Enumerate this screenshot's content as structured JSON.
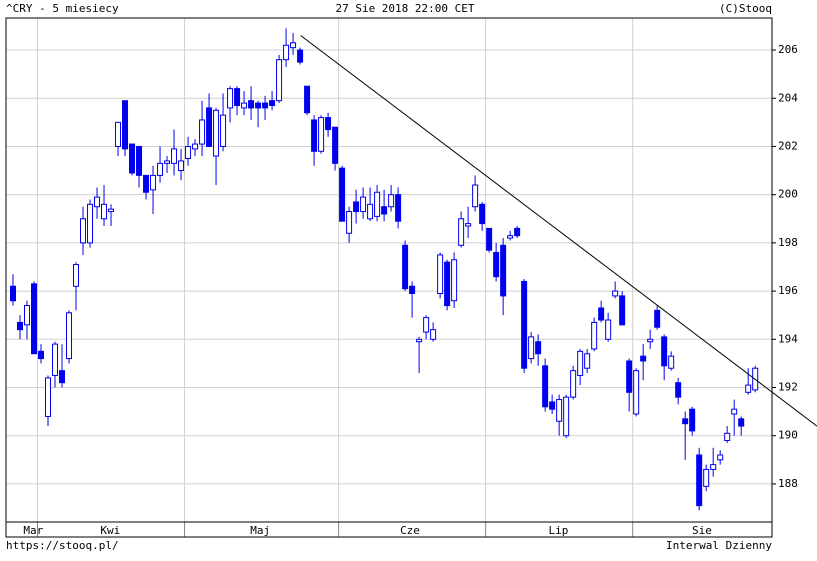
{
  "chart_data": {
    "type": "candlestick",
    "header_left": "^CRY - 5 miesiecy",
    "header_center": "27 Sie 2018 22:00 CET",
    "header_right": "(C)Stooq",
    "footer_left": "https://stooq.pl/",
    "footer_right": "Interwal Dzienny",
    "up_color": "#ffffff",
    "down_color": "#0000ee",
    "edge_color": "#0000ee",
    "open": [
      196.2,
      194.7,
      194.6,
      196.3,
      193.5,
      190.8,
      192.5,
      192.7,
      193.2,
      196.2,
      198.0,
      198.0,
      199.5,
      199.0,
      199.3,
      202.0,
      203.9,
      202.1,
      202.0,
      200.8,
      200.2,
      200.8,
      201.3,
      201.3,
      201.0,
      201.5,
      201.9,
      202.1,
      203.6,
      201.6,
      202.0,
      203.6,
      204.4,
      203.6,
      203.9,
      203.8,
      203.8,
      203.9,
      203.9,
      205.6,
      206.1,
      206.0,
      204.5,
      203.1,
      201.8,
      203.2,
      202.8,
      201.1,
      198.4,
      199.7,
      199.3,
      199.0,
      199.1,
      199.5,
      199.5,
      200.0,
      197.9,
      196.2,
      193.9,
      194.3,
      194.0,
      195.9,
      197.2,
      195.6,
      197.9,
      198.7,
      199.5,
      199.6,
      198.6,
      197.6,
      197.9,
      198.2,
      198.6,
      196.4,
      193.2,
      193.9,
      192.9,
      191.4,
      190.6,
      190.0,
      191.6,
      192.5,
      192.8,
      193.6,
      195.3,
      194.0,
      195.8,
      195.8,
      193.1,
      190.9,
      193.3,
      193.9,
      195.2,
      194.1,
      192.8,
      192.2,
      190.7,
      191.1,
      189.2,
      187.9,
      188.6,
      189.0,
      189.8,
      190.9,
      190.7,
      191.8,
      191.9
    ],
    "high": [
      196.7,
      195.0,
      195.6,
      196.4,
      193.8,
      192.5,
      193.9,
      193.8,
      195.2,
      197.2,
      199.5,
      199.8,
      200.3,
      200.4,
      199.6,
      203.0,
      203.9,
      202.1,
      202.0,
      200.8,
      201.2,
      202.0,
      201.6,
      202.7,
      201.9,
      202.4,
      202.3,
      203.9,
      204.2,
      203.6,
      204.2,
      204.5,
      204.5,
      204.3,
      204.5,
      203.9,
      204.1,
      204.3,
      205.8,
      206.9,
      206.7,
      206.1,
      204.5,
      203.3,
      203.3,
      203.4,
      202.8,
      201.2,
      199.5,
      200.2,
      200.3,
      200.3,
      200.4,
      200.2,
      200.4,
      200.3,
      198.1,
      196.4,
      194.1,
      195.0,
      194.7,
      197.6,
      197.3,
      197.6,
      199.3,
      199.5,
      200.8,
      199.7,
      198.6,
      198.0,
      198.2,
      198.5,
      198.7,
      196.5,
      194.3,
      194.2,
      193.2,
      191.7,
      191.7,
      191.7,
      192.9,
      193.6,
      193.6,
      194.9,
      195.6,
      195.1,
      196.4,
      196.0,
      193.2,
      192.8,
      193.8,
      194.4,
      195.4,
      194.2,
      193.5,
      192.4,
      191.0,
      191.2,
      189.5,
      188.8,
      189.5,
      189.4,
      190.4,
      191.5,
      190.8,
      192.8,
      192.9
    ],
    "low": [
      195.4,
      194.0,
      194.0,
      193.4,
      193.0,
      190.4,
      192.0,
      192.0,
      193.0,
      195.2,
      197.5,
      197.8,
      199.0,
      198.7,
      198.7,
      201.6,
      201.6,
      200.8,
      200.3,
      199.8,
      199.2,
      200.5,
      200.9,
      200.8,
      200.6,
      201.2,
      201.6,
      201.6,
      202.0,
      200.4,
      201.8,
      203.0,
      203.3,
      203.3,
      203.1,
      202.8,
      203.1,
      203.5,
      203.8,
      205.3,
      205.8,
      205.4,
      203.3,
      201.2,
      201.7,
      202.4,
      201.0,
      198.9,
      198.0,
      198.8,
      199.0,
      198.9,
      198.9,
      198.9,
      199.3,
      198.6,
      196.0,
      194.9,
      192.6,
      194.0,
      193.9,
      195.7,
      195.2,
      195.3,
      197.8,
      198.2,
      199.3,
      198.5,
      197.6,
      196.4,
      195.0,
      198.1,
      198.2,
      192.6,
      193.0,
      192.9,
      191.0,
      190.9,
      190.0,
      189.9,
      191.5,
      192.1,
      192.6,
      193.5,
      194.7,
      193.9,
      195.7,
      194.6,
      191.0,
      190.8,
      192.3,
      193.6,
      194.4,
      192.3,
      192.7,
      191.3,
      189.0,
      190.0,
      186.9,
      187.7,
      188.3,
      188.8,
      189.7,
      190.0,
      190.0,
      191.7,
      191.8
    ],
    "close": [
      195.6,
      194.4,
      195.4,
      193.4,
      193.2,
      192.4,
      193.8,
      192.2,
      195.1,
      197.1,
      199.0,
      199.6,
      199.9,
      199.6,
      199.4,
      203.0,
      201.9,
      200.9,
      200.8,
      200.1,
      200.8,
      201.3,
      201.4,
      201.9,
      201.4,
      202.0,
      202.1,
      203.1,
      202.0,
      203.5,
      203.3,
      204.4,
      203.7,
      203.8,
      203.6,
      203.6,
      203.6,
      203.7,
      205.6,
      206.2,
      206.3,
      205.5,
      203.4,
      201.8,
      203.2,
      202.7,
      201.3,
      198.9,
      199.3,
      199.3,
      199.9,
      199.6,
      200.1,
      199.2,
      200.0,
      198.9,
      196.1,
      195.9,
      194.0,
      194.9,
      194.4,
      197.5,
      195.4,
      197.3,
      199.0,
      198.8,
      200.4,
      198.8,
      197.7,
      196.6,
      195.8,
      198.3,
      198.3,
      192.8,
      194.1,
      193.4,
      191.2,
      191.1,
      191.5,
      191.6,
      192.7,
      193.5,
      193.4,
      194.7,
      194.8,
      194.8,
      196.0,
      194.6,
      191.8,
      192.7,
      193.1,
      194.0,
      194.5,
      192.9,
      193.3,
      191.6,
      190.5,
      190.2,
      187.1,
      188.6,
      188.8,
      189.2,
      190.1,
      191.1,
      190.4,
      192.1,
      192.8
    ],
    "trendline": {
      "x": [
        41.1,
        114.9
      ],
      "y": [
        206.6,
        190.4
      ]
    },
    "xlim": [
      -1,
      108.4
    ],
    "xticks": [
      {
        "value": 2.9,
        "label": "Mar"
      },
      {
        "value": 13.9,
        "label": "Kwi"
      },
      {
        "value": 35.3,
        "label": "Maj"
      },
      {
        "value": 56.7,
        "label": "Cze"
      },
      {
        "value": 77.9,
        "label": "Lip"
      },
      {
        "value": 98.4,
        "label": "Sie"
      }
    ],
    "xgrid": [
      3.5,
      24.5,
      46.5,
      67.5,
      88.5
    ],
    "ylim": [
      186.42,
      207.33
    ],
    "yticks": [
      188,
      190,
      192,
      194,
      196,
      198,
      200,
      202,
      204,
      206
    ],
    "grid": true
  }
}
